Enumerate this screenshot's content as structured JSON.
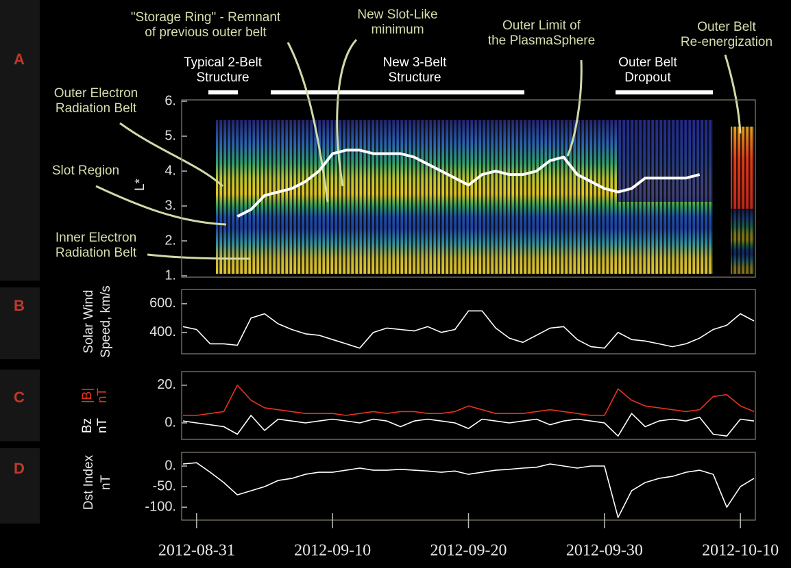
{
  "chart_data": [
    {
      "type": "line",
      "y_label": [
        "L*"
      ],
      "annotations": [
        {
          "lines": [
            "Outer Electron",
            "Radiation Belt"
          ]
        },
        {
          "lines": [
            "Slot Region"
          ]
        },
        {
          "lines": [
            "Inner Electron",
            "Radiation Belt"
          ]
        },
        {
          "lines": [
            "\"Storage Ring\" - Remnant",
            "of previous outer belt"
          ]
        },
        {
          "lines": [
            "New Slot-Like",
            "minimum"
          ]
        },
        {
          "lines": [
            "Outer Limit of",
            "the PlasmaSphere"
          ]
        },
        {
          "lines": [
            "Outer Belt",
            "Re-energization"
          ]
        },
        {
          "lines": [
            "Typical 2-Belt",
            "Structure"
          ]
        },
        {
          "lines": [
            "New 3-Belt",
            "Structure"
          ]
        },
        {
          "lines": [
            "Outer Belt",
            "Dropout"
          ]
        }
      ],
      "x": [
        "2012-08-30",
        "2012-08-31",
        "2012-09-01",
        "2012-09-02",
        "2012-09-03",
        "2012-09-04",
        "2012-09-05",
        "2012-09-06",
        "2012-09-07",
        "2012-09-08",
        "2012-09-09",
        "2012-09-10",
        "2012-09-11",
        "2012-09-12",
        "2012-09-13",
        "2012-09-14",
        "2012-09-15",
        "2012-09-16",
        "2012-09-17",
        "2012-09-18",
        "2012-09-19",
        "2012-09-20",
        "2012-09-21",
        "2012-09-22",
        "2012-09-23",
        "2012-09-24",
        "2012-09-25",
        "2012-09-26",
        "2012-09-27",
        "2012-09-28",
        "2012-09-29",
        "2012-09-30",
        "2012-10-01",
        "2012-10-02",
        "2012-10-03",
        "2012-10-04",
        "2012-10-05",
        "2012-10-06",
        "2012-10-07",
        "2012-10-08",
        "2012-10-09",
        "2012-10-10",
        "2012-10-11"
      ],
      "xlim": [
        "2012-08-30",
        "2012-10-11"
      ],
      "ylim": [
        1,
        6
      ],
      "yticks": [
        {
          "value": 6,
          "label": "6."
        },
        {
          "value": 5,
          "label": "5."
        },
        {
          "value": 4,
          "label": "4."
        },
        {
          "value": 3,
          "label": "3."
        },
        {
          "value": 2,
          "label": "2."
        },
        {
          "value": 1,
          "label": "1."
        }
      ],
      "series": [
        {
          "color": "#ffffff",
          "values": [
            null,
            null,
            null,
            null,
            2.7,
            2.9,
            3.3,
            3.4,
            3.5,
            3.7,
            4.0,
            4.5,
            4.6,
            4.6,
            4.5,
            4.5,
            4.5,
            4.4,
            4.2,
            4.0,
            3.8,
            3.6,
            3.9,
            4.0,
            3.9,
            3.9,
            4.0,
            4.3,
            4.4,
            3.9,
            3.7,
            3.5,
            3.4,
            3.5,
            3.8,
            3.8,
            3.8,
            3.8,
            3.9,
            null,
            null,
            null,
            null
          ]
        }
      ]
    },
    {
      "type": "line",
      "panel": "B",
      "y_label": [
        "Solar Wind",
        "Speed, km/s"
      ],
      "x": [
        "2012-08-30",
        "2012-08-31",
        "2012-09-01",
        "2012-09-02",
        "2012-09-03",
        "2012-09-04",
        "2012-09-05",
        "2012-09-06",
        "2012-09-07",
        "2012-09-08",
        "2012-09-09",
        "2012-09-10",
        "2012-09-11",
        "2012-09-12",
        "2012-09-13",
        "2012-09-14",
        "2012-09-15",
        "2012-09-16",
        "2012-09-17",
        "2012-09-18",
        "2012-09-19",
        "2012-09-20",
        "2012-09-21",
        "2012-09-22",
        "2012-09-23",
        "2012-09-24",
        "2012-09-25",
        "2012-09-26",
        "2012-09-27",
        "2012-09-28",
        "2012-09-29",
        "2012-09-30",
        "2012-10-01",
        "2012-10-02",
        "2012-10-03",
        "2012-10-04",
        "2012-10-05",
        "2012-10-06",
        "2012-10-07",
        "2012-10-08",
        "2012-10-09",
        "2012-10-10",
        "2012-10-11"
      ],
      "xlim": [
        "2012-08-30",
        "2012-10-11"
      ],
      "ylim": [
        260,
        690
      ],
      "yticks": [
        {
          "value": 600,
          "label": "600."
        },
        {
          "value": 400,
          "label": "400."
        }
      ],
      "series": [
        {
          "color": "#ffffff",
          "values": [
            440,
            420,
            320,
            320,
            310,
            500,
            530,
            460,
            420,
            390,
            380,
            350,
            320,
            290,
            400,
            430,
            420,
            410,
            440,
            400,
            420,
            550,
            550,
            430,
            360,
            330,
            380,
            430,
            440,
            350,
            300,
            290,
            400,
            350,
            340,
            320,
            300,
            320,
            360,
            420,
            450,
            530,
            480
          ]
        }
      ]
    },
    {
      "type": "line",
      "panel": "C",
      "y_labels": [
        {
          "lines": [
            "|B|",
            "nT"
          ],
          "color": "#e8321e"
        },
        {
          "lines": [
            "Bz",
            "nT"
          ],
          "color": "#ffffff"
        }
      ],
      "x": [
        "2012-08-30",
        "2012-08-31",
        "2012-09-01",
        "2012-09-02",
        "2012-09-03",
        "2012-09-04",
        "2012-09-05",
        "2012-09-06",
        "2012-09-07",
        "2012-09-08",
        "2012-09-09",
        "2012-09-10",
        "2012-09-11",
        "2012-09-12",
        "2012-09-13",
        "2012-09-14",
        "2012-09-15",
        "2012-09-16",
        "2012-09-17",
        "2012-09-18",
        "2012-09-19",
        "2012-09-20",
        "2012-09-21",
        "2012-09-22",
        "2012-09-23",
        "2012-09-24",
        "2012-09-25",
        "2012-09-26",
        "2012-09-27",
        "2012-09-28",
        "2012-09-29",
        "2012-09-30",
        "2012-10-01",
        "2012-10-02",
        "2012-10-03",
        "2012-10-04",
        "2012-10-05",
        "2012-10-06",
        "2012-10-07",
        "2012-10-08",
        "2012-10-09",
        "2012-10-10",
        "2012-10-11"
      ],
      "xlim": [
        "2012-08-30",
        "2012-10-11"
      ],
      "ylim": [
        -8,
        26.5
      ],
      "yticks": [
        {
          "value": 20,
          "label": "20."
        },
        {
          "value": 0,
          "label": "0."
        }
      ],
      "series": [
        {
          "color": "#ffffff",
          "values": [
            1,
            0,
            -1,
            -2,
            -6,
            4,
            -4,
            2,
            1,
            0,
            1,
            2,
            1,
            0,
            2,
            1,
            -2,
            1,
            2,
            1,
            0,
            -3,
            2,
            1,
            0,
            1,
            2,
            -1,
            1,
            2,
            1,
            0,
            -7,
            5,
            -2,
            1,
            2,
            1,
            3,
            -6,
            -7,
            2,
            1
          ]
        },
        {
          "color": "#e8321e",
          "values": [
            4,
            4,
            5,
            6,
            20,
            12,
            8,
            7,
            6,
            5,
            5,
            5,
            4,
            5,
            6,
            5,
            6,
            6,
            5,
            5,
            6,
            9,
            7,
            5,
            5,
            5,
            6,
            7,
            6,
            5,
            4,
            4,
            18,
            12,
            9,
            8,
            7,
            6,
            7,
            14,
            15,
            9,
            6
          ]
        }
      ]
    },
    {
      "type": "line",
      "panel": "D",
      "y_label": [
        "Dst Index",
        "nT"
      ],
      "x": [
        "2012-08-30",
        "2012-08-31",
        "2012-09-01",
        "2012-09-02",
        "2012-09-03",
        "2012-09-04",
        "2012-09-05",
        "2012-09-06",
        "2012-09-07",
        "2012-09-08",
        "2012-09-09",
        "2012-09-10",
        "2012-09-11",
        "2012-09-12",
        "2012-09-13",
        "2012-09-14",
        "2012-09-15",
        "2012-09-16",
        "2012-09-17",
        "2012-09-18",
        "2012-09-19",
        "2012-09-20",
        "2012-09-21",
        "2012-09-22",
        "2012-09-23",
        "2012-09-24",
        "2012-09-25",
        "2012-09-26",
        "2012-09-27",
        "2012-09-28",
        "2012-09-29",
        "2012-09-30",
        "2012-10-01",
        "2012-10-02",
        "2012-10-03",
        "2012-10-04",
        "2012-10-05",
        "2012-10-06",
        "2012-10-07",
        "2012-10-08",
        "2012-10-09",
        "2012-10-10",
        "2012-10-11"
      ],
      "xlim": [
        "2012-08-30",
        "2012-10-11"
      ],
      "xticks": [
        "2012-08-31",
        "2012-09-10",
        "2012-09-20",
        "2012-09-30",
        "2012-10-10"
      ],
      "ylim": [
        -128,
        30
      ],
      "yticks": [
        {
          "value": 0,
          "label": "0."
        },
        {
          "value": -50,
          "label": "-50."
        },
        {
          "value": -100,
          "label": "-100."
        }
      ],
      "series": [
        {
          "color": "#ffffff",
          "values": [
            5,
            8,
            -15,
            -40,
            -70,
            -60,
            -50,
            -35,
            -30,
            -20,
            -15,
            -15,
            -10,
            -5,
            -10,
            -10,
            -8,
            -10,
            -12,
            -15,
            -12,
            -20,
            -15,
            -10,
            -8,
            -5,
            -3,
            5,
            0,
            -5,
            0,
            0,
            -125,
            -60,
            -40,
            -30,
            -25,
            -15,
            -10,
            -20,
            -100,
            -50,
            -30
          ]
        }
      ]
    }
  ],
  "panel_labels": [
    "A",
    "B",
    "C",
    "D"
  ]
}
